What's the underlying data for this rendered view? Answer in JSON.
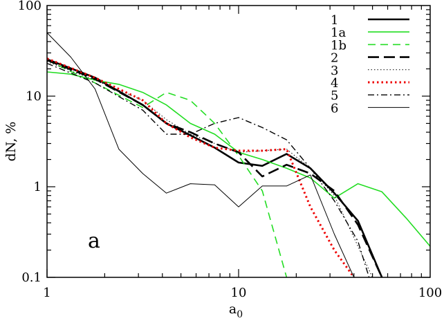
{
  "chart_data": {
    "type": "line",
    "xlabel": "a",
    "xlabel_sub": "0",
    "ylabel": "dN, %",
    "xscale": "log",
    "yscale": "log",
    "xlim": [
      1,
      100
    ],
    "ylim": [
      0.1,
      100
    ],
    "xticks": [
      "1",
      "10",
      "100"
    ],
    "yticks": [
      "100",
      "10",
      "1",
      "0.1"
    ],
    "grid": false,
    "legend_position": "top-right",
    "annotation": "a",
    "series": [
      {
        "name": "1",
        "color": "#000000",
        "dash": "solid-thick",
        "points": [
          [
            1,
            25.5
          ],
          [
            1.78,
            16
          ],
          [
            3.16,
            8
          ],
          [
            4.2,
            5
          ],
          [
            5.6,
            3.7
          ],
          [
            7.5,
            2.7
          ],
          [
            10,
            1.85
          ],
          [
            13.3,
            1.7
          ],
          [
            17.8,
            2.3
          ],
          [
            23.7,
            1.6
          ],
          [
            31.6,
            0.85
          ],
          [
            42,
            0.42
          ],
          [
            56,
            0.1
          ]
        ]
      },
      {
        "name": "1a",
        "color": "#22dd22",
        "dash": "solid",
        "points": [
          [
            1,
            18.5
          ],
          [
            1.33,
            17.5
          ],
          [
            1.78,
            15
          ],
          [
            2.37,
            13.5
          ],
          [
            3.16,
            11
          ],
          [
            4.2,
            8
          ],
          [
            5.6,
            5
          ],
          [
            7.5,
            3.8
          ],
          [
            10,
            2.4
          ],
          [
            13.3,
            2
          ],
          [
            17.8,
            1.6
          ],
          [
            23.7,
            1.25
          ],
          [
            31.6,
            0.75
          ],
          [
            42,
            1.08
          ],
          [
            56,
            0.88
          ],
          [
            75,
            0.45
          ],
          [
            100,
            0.22
          ]
        ]
      },
      {
        "name": "1b",
        "color": "#22dd22",
        "dash": "dashed",
        "points": [
          [
            1,
            25
          ],
          [
            1.78,
            14
          ],
          [
            3.16,
            7.5
          ],
          [
            4.2,
            11
          ],
          [
            5.6,
            9
          ],
          [
            7.5,
            5
          ],
          [
            10,
            2.2
          ],
          [
            13.3,
            0.9
          ],
          [
            17.8,
            0.1
          ]
        ]
      },
      {
        "name": "2",
        "color": "#000000",
        "dash": "long-dashed-thick",
        "points": [
          [
            1,
            25
          ],
          [
            1.78,
            15.5
          ],
          [
            3.16,
            8
          ],
          [
            4.2,
            5
          ],
          [
            5.6,
            4
          ],
          [
            7.5,
            3
          ],
          [
            10,
            2.4
          ],
          [
            13.3,
            1.3
          ],
          [
            17.8,
            1.75
          ],
          [
            23.7,
            1.4
          ],
          [
            31.6,
            0.9
          ],
          [
            42,
            0.38
          ],
          [
            56,
            0.1
          ]
        ]
      },
      {
        "name": "3",
        "color": "#000000",
        "dash": "dotted",
        "points": [
          [
            1,
            24
          ],
          [
            1.78,
            15
          ],
          [
            3.16,
            9
          ],
          [
            4.2,
            5.5
          ],
          [
            5.6,
            3.8
          ],
          [
            7.5,
            3
          ],
          [
            10,
            2.4
          ],
          [
            13.3,
            2.5
          ],
          [
            17.8,
            2.6
          ],
          [
            23.7,
            1.6
          ],
          [
            31.6,
            0.8
          ],
          [
            42,
            0.22
          ],
          [
            50,
            0.1
          ]
        ]
      },
      {
        "name": "4",
        "color": "#ee0000",
        "dash": "dotted-thick",
        "points": [
          [
            1,
            26
          ],
          [
            1.78,
            16
          ],
          [
            3.16,
            9
          ],
          [
            4.2,
            5
          ],
          [
            5.6,
            3.5
          ],
          [
            7.5,
            2.7
          ],
          [
            10,
            2.5
          ],
          [
            13.3,
            2.5
          ],
          [
            17.8,
            2.6
          ],
          [
            23.7,
            0.6
          ],
          [
            31.6,
            0.2
          ],
          [
            40,
            0.1
          ]
        ]
      },
      {
        "name": "5",
        "color": "#000000",
        "dash": "dash-dot",
        "points": [
          [
            1,
            23
          ],
          [
            1.78,
            14
          ],
          [
            3.16,
            7
          ],
          [
            4.2,
            3.8
          ],
          [
            5.6,
            3.8
          ],
          [
            7.5,
            5
          ],
          [
            10,
            5.8
          ],
          [
            13.3,
            4.5
          ],
          [
            17.8,
            3.3
          ],
          [
            23.7,
            1.6
          ],
          [
            31.6,
            0.7
          ],
          [
            42,
            0.25
          ],
          [
            48,
            0.1
          ]
        ]
      },
      {
        "name": "6",
        "color": "#000000",
        "dash": "solid-thin",
        "points": [
          [
            1,
            50
          ],
          [
            1.33,
            27
          ],
          [
            1.78,
            12
          ],
          [
            2.37,
            2.6
          ],
          [
            3.16,
            1.4
          ],
          [
            4.2,
            0.85
          ],
          [
            5.6,
            1.08
          ],
          [
            7.5,
            1.05
          ],
          [
            10,
            0.6
          ],
          [
            13.3,
            1.02
          ],
          [
            17.8,
            1.02
          ],
          [
            23.7,
            1.35
          ],
          [
            31.6,
            0.3
          ],
          [
            40,
            0.1
          ]
        ]
      }
    ]
  }
}
